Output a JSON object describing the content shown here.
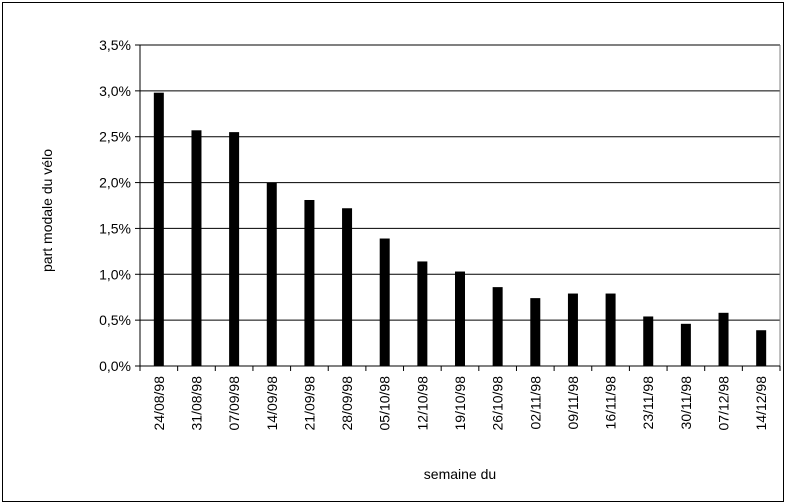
{
  "chart_data": {
    "type": "bar",
    "title": "",
    "xlabel": "semaine du",
    "ylabel": "part modale du vélo",
    "categories": [
      "24/08/98",
      "31/08/98",
      "07/09/98",
      "14/09/98",
      "21/09/98",
      "28/09/98",
      "05/10/98",
      "12/10/98",
      "19/10/98",
      "26/10/98",
      "02/11/98",
      "09/11/98",
      "16/11/98",
      "23/11/98",
      "30/11/98",
      "07/12/98",
      "14/12/98"
    ],
    "values": [
      2.98,
      2.57,
      2.55,
      2.0,
      1.81,
      1.72,
      1.39,
      1.14,
      1.03,
      0.86,
      0.74,
      0.79,
      0.79,
      0.54,
      0.46,
      0.58,
      0.39
    ],
    "value_unit": "%",
    "ylim": [
      0,
      3.5
    ],
    "yticks": [
      "0,0%",
      "0,5%",
      "1,0%",
      "1,5%",
      "2,0%",
      "2,5%",
      "3,0%",
      "3,5%"
    ],
    "grid": true,
    "bar_color": "#000000"
  }
}
